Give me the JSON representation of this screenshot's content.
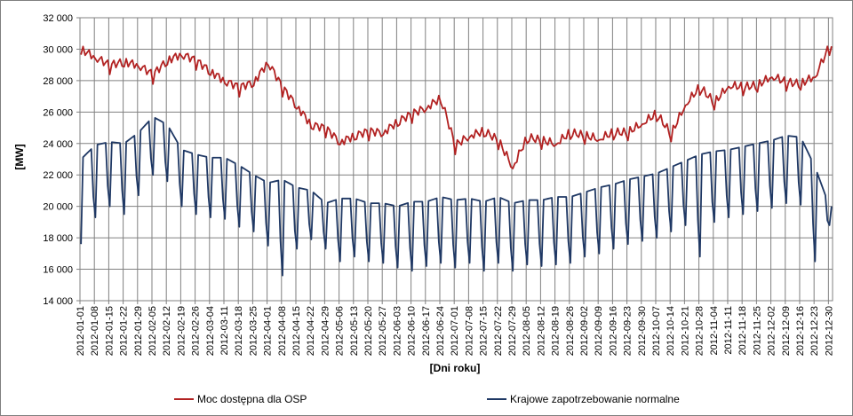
{
  "chart_data": {
    "type": "line",
    "xlabel": "[Dni roku]",
    "ylabel": "[MW]",
    "ylim": [
      14000,
      32000
    ],
    "y_ticks": [
      "14 000",
      "16 000",
      "18 000",
      "20 000",
      "22 000",
      "24 000",
      "26 000",
      "28 000",
      "30 000",
      "32 000"
    ],
    "y_tick_values": [
      14000,
      16000,
      18000,
      20000,
      22000,
      24000,
      26000,
      28000,
      30000,
      32000
    ],
    "x_range": [
      "2012-01-01",
      "2012-12-31"
    ],
    "x_ticks": [
      "2012-01-01",
      "2012-01-08",
      "2012-01-15",
      "2012-01-22",
      "2012-01-29",
      "2012-02-05",
      "2012-02-12",
      "2012-02-19",
      "2012-02-26",
      "2012-03-04",
      "2012-03-11",
      "2012-03-18",
      "2012-03-25",
      "2012-04-01",
      "2012-04-08",
      "2012-04-15",
      "2012-04-22",
      "2012-04-29",
      "2012-05-06",
      "2012-05-13",
      "2012-05-20",
      "2012-05-27",
      "2012-06-03",
      "2012-06-10",
      "2012-06-17",
      "2012-06-24",
      "2012-07-01",
      "2012-07-08",
      "2012-07-15",
      "2012-07-22",
      "2012-07-29",
      "2012-08-05",
      "2012-08-12",
      "2012-08-19",
      "2012-08-26",
      "2012-09-02",
      "2012-09-09",
      "2012-09-16",
      "2012-09-23",
      "2012-09-30",
      "2012-10-07",
      "2012-10-14",
      "2012-10-21",
      "2012-10-28",
      "2012-11-04",
      "2012-11-11",
      "2012-11-18",
      "2012-11-25",
      "2012-12-02",
      "2012-12-09",
      "2012-12-16",
      "2012-12-23",
      "2012-12-30"
    ],
    "grid": true,
    "legend_position": "bottom",
    "series": [
      {
        "name": "Moc dostępna dla OSP",
        "color": "#b22222",
        "x": [
          "2012-01-01",
          "2012-01-08",
          "2012-01-15",
          "2012-01-22",
          "2012-01-29",
          "2012-02-05",
          "2012-02-12",
          "2012-02-19",
          "2012-02-26",
          "2012-03-04",
          "2012-03-11",
          "2012-03-18",
          "2012-03-25",
          "2012-04-01",
          "2012-04-08",
          "2012-04-15",
          "2012-04-22",
          "2012-04-29",
          "2012-05-06",
          "2012-05-13",
          "2012-05-20",
          "2012-05-27",
          "2012-06-03",
          "2012-06-10",
          "2012-06-17",
          "2012-06-24",
          "2012-07-01",
          "2012-07-08",
          "2012-07-15",
          "2012-07-22",
          "2012-07-29",
          "2012-08-05",
          "2012-08-12",
          "2012-08-19",
          "2012-08-26",
          "2012-09-02",
          "2012-09-09",
          "2012-09-16",
          "2012-09-23",
          "2012-09-30",
          "2012-10-07",
          "2012-10-14",
          "2012-10-21",
          "2012-10-28",
          "2012-11-04",
          "2012-11-11",
          "2012-11-18",
          "2012-11-25",
          "2012-12-02",
          "2012-12-09",
          "2012-12-16",
          "2012-12-23",
          "2012-12-30"
        ],
        "values": [
          30000,
          29500,
          29000,
          29200,
          29000,
          28400,
          29300,
          29700,
          29300,
          28600,
          28000,
          27600,
          27900,
          29200,
          27600,
          26400,
          25200,
          25000,
          24100,
          24500,
          24800,
          24700,
          25400,
          25900,
          26300,
          26900,
          23900,
          24500,
          24800,
          24200,
          22500,
          24400,
          24200,
          24000,
          24700,
          24500,
          24300,
          24700,
          24700,
          25300,
          25900,
          24600,
          26500,
          27600,
          26600,
          27700,
          27600,
          27700,
          28300,
          27900,
          27800,
          28300,
          30200
        ]
      },
      {
        "name": "Krajowe zapotrzebowanie normalne",
        "color": "#1f3864",
        "x": [
          "2012-01-01",
          "2012-01-08",
          "2012-01-15",
          "2012-01-22",
          "2012-01-29",
          "2012-02-05",
          "2012-02-12",
          "2012-02-19",
          "2012-02-26",
          "2012-03-04",
          "2012-03-11",
          "2012-03-18",
          "2012-03-25",
          "2012-04-01",
          "2012-04-08",
          "2012-04-15",
          "2012-04-22",
          "2012-04-29",
          "2012-05-06",
          "2012-05-13",
          "2012-05-20",
          "2012-05-27",
          "2012-06-03",
          "2012-06-10",
          "2012-06-17",
          "2012-06-24",
          "2012-07-01",
          "2012-07-08",
          "2012-07-15",
          "2012-07-22",
          "2012-07-29",
          "2012-08-05",
          "2012-08-12",
          "2012-08-19",
          "2012-08-26",
          "2012-09-02",
          "2012-09-09",
          "2012-09-16",
          "2012-09-23",
          "2012-09-30",
          "2012-10-07",
          "2012-10-14",
          "2012-10-21",
          "2012-10-28",
          "2012-11-04",
          "2012-11-11",
          "2012-11-18",
          "2012-11-25",
          "2012-12-02",
          "2012-12-09",
          "2012-12-16",
          "2012-12-23",
          "2012-12-30"
        ],
        "values": [
          23000,
          23900,
          24100,
          24000,
          24700,
          25700,
          25200,
          23600,
          23300,
          23100,
          23100,
          22600,
          22000,
          21500,
          21700,
          21200,
          21000,
          20200,
          20500,
          20500,
          20200,
          20200,
          20000,
          20300,
          20300,
          20600,
          20400,
          20500,
          20300,
          20600,
          20200,
          20400,
          20400,
          20600,
          20600,
          20900,
          21200,
          21400,
          21700,
          21900,
          22100,
          22500,
          22900,
          23300,
          23500,
          23600,
          23800,
          24000,
          24200,
          24500,
          24400,
          22500,
          20000
        ],
        "weekend_values": [
          17600,
          19300,
          20000,
          19500,
          20700,
          22000,
          21600,
          20000,
          19500,
          19300,
          19200,
          18700,
          18400,
          17500,
          15600,
          17300,
          17900,
          17300,
          16500,
          16800,
          16500,
          16400,
          16100,
          15900,
          16200,
          16400,
          16100,
          16400,
          15900,
          16400,
          15900,
          16300,
          16200,
          16300,
          16400,
          16800,
          17000,
          17300,
          17600,
          17800,
          18000,
          18400,
          18800,
          16800,
          19000,
          19300,
          19500,
          19700,
          19900,
          20200,
          20100,
          16500,
          18800
        ]
      }
    ]
  }
}
